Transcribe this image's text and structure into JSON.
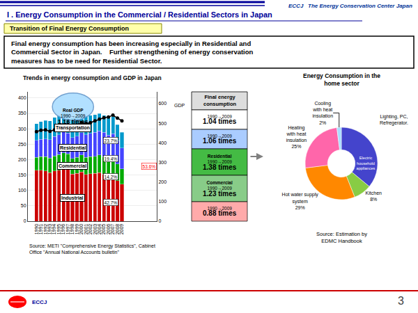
{
  "title": "I . Energy Consumption in the Commercial / Residential Sectors in Japan",
  "subtitle": "Transition of Final Energy Consumption",
  "annotations": [
    {
      "text": "ECCJ   The Energy Conservation Center Japan",
      "color": "#003399"
    },
    {
      "text": "Final energy consumption has been increasing especially in Residential and\nCommercial Sector in Japan.    Further strengthening of energy conservation\nmeasures has to be need for Residential Sector."
    },
    {
      "text": "ECCJ",
      "color": "#000099"
    },
    {
      "text": "3"
    }
  ],
  "chart_data": [
    {
      "type": "bar",
      "stacked": true,
      "title": "Trends in energy consumption and GDP in Japan",
      "categories": [
        "1990",
        "1991",
        "1992",
        "1993",
        "1994",
        "1995",
        "1996",
        "1997",
        "1998",
        "1999",
        "2000",
        "2001",
        "2002",
        "2003",
        "2004",
        "2005",
        "2006",
        "2007",
        "2008",
        "2009"
      ],
      "series": [
        {
          "name": "Industrial",
          "color": "#cc0000",
          "values": [
            165,
            165,
            163,
            158,
            163,
            165,
            170,
            168,
            153,
            155,
            160,
            152,
            154,
            155,
            158,
            153,
            147,
            150,
            132,
            120
          ]
        },
        {
          "name": "Commercial",
          "color": "#00aa00",
          "values": [
            42,
            44,
            46,
            47,
            49,
            51,
            52,
            51,
            51,
            52,
            55,
            55,
            55,
            56,
            57,
            57,
            56,
            57,
            54,
            50
          ]
        },
        {
          "name": "Residential",
          "color": "#4444ff",
          "values": [
            55,
            57,
            58,
            60,
            63,
            65,
            68,
            67,
            68,
            69,
            72,
            74,
            76,
            77,
            78,
            78,
            77,
            77,
            75,
            68
          ]
        },
        {
          "name": "Transportation",
          "color": "#0099cc",
          "values": [
            55,
            58,
            60,
            61,
            62,
            62,
            63,
            64,
            63,
            63,
            62,
            60,
            59,
            58,
            57,
            56,
            55,
            55,
            52,
            50
          ]
        },
        {
          "name": "GDP",
          "type": "line",
          "axis": "y2",
          "color": "#000000",
          "marker": "circle",
          "line_style": "solid",
          "values": [
            457,
            464,
            466,
            459,
            466,
            475,
            487,
            492,
            487,
            490,
            503,
            497,
            503,
            512,
            521,
            528,
            531,
            541,
            526,
            512
          ]
        }
      ],
      "ylim": [
        0,
        420
      ],
      "yticks": [
        0,
        50,
        100,
        150,
        200,
        250,
        300,
        350,
        400
      ],
      "y2lim": [
        0,
        660
      ],
      "y2ticks": [
        0,
        100,
        200,
        300,
        400,
        500,
        600
      ],
      "grid": true,
      "annotations": [
        {
          "text": "Real GDP\n1990→2009\n1.16 times",
          "color": "#aaddff"
        },
        {
          "text": "23.7%",
          "category": "2009",
          "series": [
            "Transportation"
          ]
        },
        {
          "text": "19.4%",
          "category": "2009",
          "series": [
            "Residential"
          ]
        },
        {
          "text": "14.2%",
          "category": "2009",
          "series": [
            "Commercial"
          ]
        },
        {
          "text": "42.7%",
          "category": "2009",
          "series": [
            "Industrial"
          ]
        },
        {
          "text": "53.6%",
          "category": "2009",
          "series": [
            "Commercial",
            "Residential"
          ],
          "color": "#ff0000"
        }
      ],
      "source": "Source: METI \"Comprehensive Energy Statistics\", Cabinet\nOffice \"Annual National Accounts bulletin\""
    },
    {
      "type": "table",
      "title": "Final energy\nconsumption",
      "annotations": [
        {
          "text": "1990→2009\n1.04 times",
          "color": "#ffffff"
        },
        {
          "text": "1990→2009\n1.06 times",
          "color": "#aaccff"
        },
        {
          "text": "Residential\n1990→2009\n1.38 times",
          "color": "#44bb44"
        },
        {
          "text": "Commercial\n1990→2009\n1.23 times",
          "color": "#88cc88"
        },
        {
          "text": "1990→2009\n0.88 times",
          "color": "#ffaaaa"
        }
      ]
    },
    {
      "type": "pie",
      "title": "Energy Consumption in the\nhome sector",
      "categories": [
        "Electric\nhousehold\nappliances",
        "Kitchen\n8%",
        "Hot water supply\nsystem\n29%",
        "Heating\nwith heat\ninsulation\n25%",
        "Cooling\nwith heat\ninsulation\n2%"
      ],
      "values": [
        36,
        8,
        29,
        25,
        2
      ],
      "colors": [
        "#4444cc",
        "#88cc44",
        "#ff8800",
        "#ff66aa",
        "#aaddff"
      ],
      "annotations": [
        {
          "text": "Lighting, PC,\nRefregerator."
        }
      ],
      "source": "Source: Estimation by\nEDMC Handbook"
    }
  ]
}
